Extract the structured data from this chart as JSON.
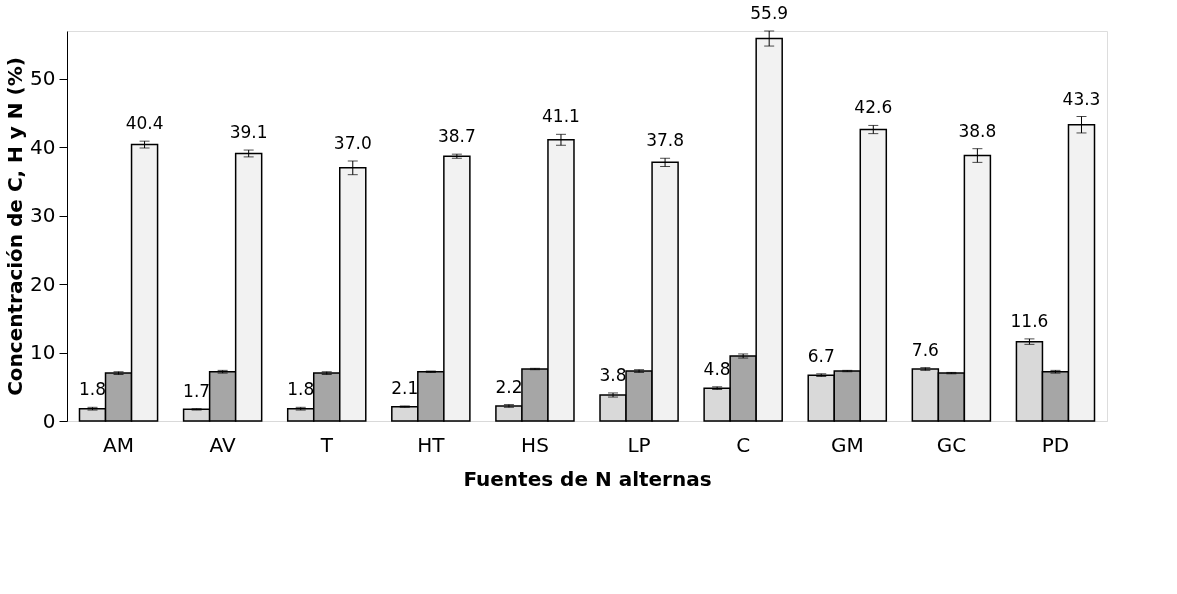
{
  "chart_data": {
    "type": "bar",
    "xlabel": "Fuentes de N alternas",
    "ylabel": "Concentración de C, H y N (%)",
    "categories": [
      "AM",
      "AV",
      "T",
      "HT",
      "HS",
      "LP",
      "C",
      "GM",
      "GC",
      "PD"
    ],
    "ylim": [
      0,
      57
    ],
    "yticks": [
      0,
      10,
      20,
      30,
      40,
      50
    ],
    "grid": false,
    "legend": false,
    "series": [
      {
        "color": "#d9d9d9",
        "values": [
          1.8,
          1.7,
          1.8,
          2.1,
          2.2,
          3.8,
          4.8,
          6.7,
          7.6,
          11.6
        ],
        "errors": [
          0.2,
          0.1,
          0.2,
          0.1,
          0.2,
          0.3,
          0.2,
          0.2,
          0.2,
          0.4
        ],
        "value_labels": [
          "1.8",
          "1.7",
          "1.8",
          "2.1",
          "2.2",
          "3.8",
          "4.8",
          "6.7",
          "7.6",
          "11.6"
        ]
      },
      {
        "color": "#a6a6a6",
        "values": [
          7.0,
          7.2,
          7.0,
          7.2,
          7.6,
          7.3,
          9.5,
          7.3,
          7.0,
          7.2
        ],
        "errors": [
          0.2,
          0.2,
          0.2,
          0.1,
          0.1,
          0.2,
          0.3,
          0.1,
          0.1,
          0.2
        ]
      },
      {
        "color": "#f2f2f2",
        "values": [
          40.4,
          39.1,
          37.0,
          38.7,
          41.1,
          37.8,
          55.9,
          42.6,
          38.8,
          43.3
        ],
        "errors": [
          0.5,
          0.5,
          1.0,
          0.3,
          0.8,
          0.6,
          1.1,
          0.6,
          1.0,
          1.2
        ],
        "value_labels": [
          "40.4",
          "39.1",
          "37.0",
          "38.7",
          "41.1",
          "37.8",
          "55.9",
          "42.6",
          "38.8",
          "43.3"
        ]
      }
    ]
  }
}
